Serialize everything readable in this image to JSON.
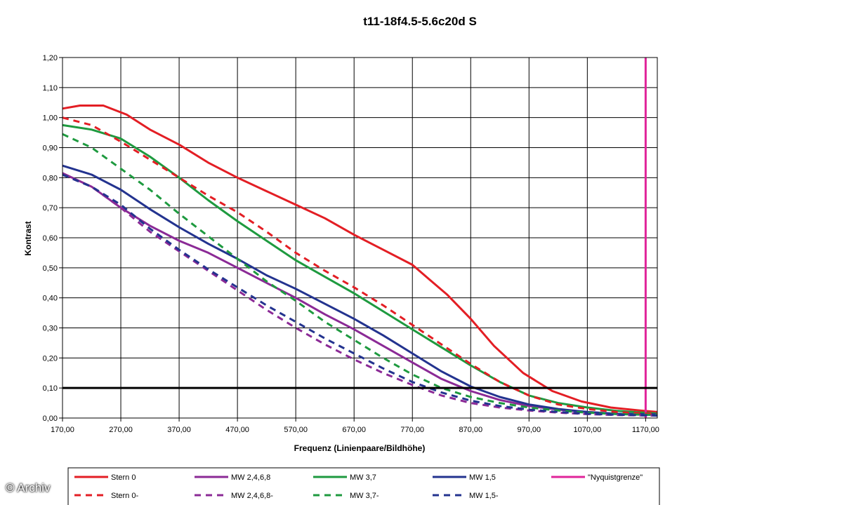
{
  "watermark": "© Archiv",
  "colors": {
    "red": "#e31e24",
    "purple": "#8b2a96",
    "green": "#1e9a3f",
    "blue": "#23338f",
    "pink": "#e0249a",
    "black": "#000000"
  },
  "chart_data": {
    "type": "line",
    "title": "t11-18f4.5-5.6c20d S",
    "xlabel": "Frequenz (Linienpaare/Bildhöhe)",
    "ylabel": "Kontrast",
    "xlim": [
      170,
      1190
    ],
    "ylim": [
      0,
      1.2
    ],
    "x_ticks": [
      "170,00",
      "270,00",
      "370,00",
      "470,00",
      "570,00",
      "670,00",
      "770,00",
      "870,00",
      "970,00",
      "1070,00",
      "1170,00"
    ],
    "y_ticks": [
      "0,00",
      "0,10",
      "0,20",
      "0,30",
      "0,40",
      "0,50",
      "0,60",
      "0,70",
      "0,80",
      "0,90",
      "1,00",
      "1,10",
      "1,20"
    ],
    "grid": true,
    "legend_position": "bottom",
    "reference_line": {
      "y": 0.1
    },
    "series": [
      {
        "name": "Stern 0",
        "color": "red",
        "dash": false,
        "points": [
          [
            170,
            1.03
          ],
          [
            200,
            1.04
          ],
          [
            240,
            1.04
          ],
          [
            280,
            1.01
          ],
          [
            320,
            0.96
          ],
          [
            370,
            0.91
          ],
          [
            420,
            0.85
          ],
          [
            470,
            0.8
          ],
          [
            520,
            0.755
          ],
          [
            570,
            0.71
          ],
          [
            620,
            0.665
          ],
          [
            670,
            0.61
          ],
          [
            720,
            0.56
          ],
          [
            770,
            0.51
          ],
          [
            800,
            0.46
          ],
          [
            830,
            0.41
          ],
          [
            870,
            0.33
          ],
          [
            910,
            0.24
          ],
          [
            960,
            0.15
          ],
          [
            1010,
            0.09
          ],
          [
            1060,
            0.055
          ],
          [
            1110,
            0.035
          ],
          [
            1160,
            0.025
          ],
          [
            1190,
            0.02
          ]
        ]
      },
      {
        "name": "MW 2,4,6,8",
        "color": "purple",
        "dash": false,
        "points": [
          [
            170,
            0.815
          ],
          [
            220,
            0.77
          ],
          [
            270,
            0.7
          ],
          [
            320,
            0.64
          ],
          [
            370,
            0.59
          ],
          [
            420,
            0.55
          ],
          [
            470,
            0.5
          ],
          [
            520,
            0.45
          ],
          [
            570,
            0.4
          ],
          [
            620,
            0.345
          ],
          [
            670,
            0.295
          ],
          [
            720,
            0.24
          ],
          [
            770,
            0.185
          ],
          [
            820,
            0.13
          ],
          [
            870,
            0.09
          ],
          [
            920,
            0.06
          ],
          [
            970,
            0.04
          ],
          [
            1020,
            0.028
          ],
          [
            1070,
            0.02
          ],
          [
            1120,
            0.014
          ],
          [
            1190,
            0.012
          ]
        ]
      },
      {
        "name": "MW 3,7",
        "color": "green",
        "dash": false,
        "points": [
          [
            170,
            0.975
          ],
          [
            220,
            0.96
          ],
          [
            270,
            0.93
          ],
          [
            320,
            0.87
          ],
          [
            370,
            0.8
          ],
          [
            420,
            0.725
          ],
          [
            470,
            0.655
          ],
          [
            520,
            0.59
          ],
          [
            570,
            0.525
          ],
          [
            620,
            0.47
          ],
          [
            670,
            0.415
          ],
          [
            720,
            0.355
          ],
          [
            770,
            0.295
          ],
          [
            820,
            0.235
          ],
          [
            870,
            0.175
          ],
          [
            920,
            0.12
          ],
          [
            970,
            0.075
          ],
          [
            1020,
            0.05
          ],
          [
            1070,
            0.035
          ],
          [
            1120,
            0.024
          ],
          [
            1190,
            0.015
          ]
        ]
      },
      {
        "name": "MW 1,5",
        "color": "blue",
        "dash": false,
        "points": [
          [
            170,
            0.84
          ],
          [
            220,
            0.81
          ],
          [
            270,
            0.76
          ],
          [
            320,
            0.695
          ],
          [
            370,
            0.635
          ],
          [
            420,
            0.58
          ],
          [
            470,
            0.53
          ],
          [
            520,
            0.475
          ],
          [
            570,
            0.43
          ],
          [
            620,
            0.38
          ],
          [
            670,
            0.33
          ],
          [
            720,
            0.275
          ],
          [
            770,
            0.215
          ],
          [
            820,
            0.155
          ],
          [
            870,
            0.105
          ],
          [
            920,
            0.07
          ],
          [
            970,
            0.045
          ],
          [
            1020,
            0.03
          ],
          [
            1070,
            0.02
          ],
          [
            1120,
            0.014
          ],
          [
            1190,
            0.012
          ]
        ]
      },
      {
        "name": "\"Nyquistgrenze\"",
        "color": "pink",
        "dash": false,
        "vertical_x": 1170
      },
      {
        "name": "Stern 0-",
        "color": "red",
        "dash": true,
        "points": [
          [
            170,
            1.0
          ],
          [
            220,
            0.975
          ],
          [
            270,
            0.92
          ],
          [
            320,
            0.86
          ],
          [
            370,
            0.8
          ],
          [
            420,
            0.74
          ],
          [
            470,
            0.685
          ],
          [
            520,
            0.62
          ],
          [
            570,
            0.55
          ],
          [
            620,
            0.49
          ],
          [
            670,
            0.435
          ],
          [
            720,
            0.375
          ],
          [
            770,
            0.31
          ],
          [
            820,
            0.245
          ],
          [
            870,
            0.18
          ],
          [
            920,
            0.12
          ],
          [
            970,
            0.075
          ],
          [
            1020,
            0.045
          ],
          [
            1070,
            0.03
          ],
          [
            1120,
            0.02
          ],
          [
            1190,
            0.013
          ]
        ]
      },
      {
        "name": "MW 2,4,6,8-",
        "color": "purple",
        "dash": true,
        "points": [
          [
            170,
            0.81
          ],
          [
            220,
            0.77
          ],
          [
            270,
            0.7
          ],
          [
            320,
            0.62
          ],
          [
            370,
            0.555
          ],
          [
            420,
            0.49
          ],
          [
            470,
            0.425
          ],
          [
            520,
            0.36
          ],
          [
            570,
            0.3
          ],
          [
            620,
            0.245
          ],
          [
            670,
            0.195
          ],
          [
            720,
            0.15
          ],
          [
            770,
            0.11
          ],
          [
            820,
            0.075
          ],
          [
            870,
            0.05
          ],
          [
            920,
            0.035
          ],
          [
            970,
            0.025
          ],
          [
            1020,
            0.018
          ],
          [
            1070,
            0.013
          ],
          [
            1120,
            0.01
          ],
          [
            1190,
            0.008
          ]
        ]
      },
      {
        "name": "MW 3,7-",
        "color": "green",
        "dash": true,
        "points": [
          [
            170,
            0.945
          ],
          [
            220,
            0.9
          ],
          [
            270,
            0.83
          ],
          [
            320,
            0.76
          ],
          [
            370,
            0.68
          ],
          [
            420,
            0.605
          ],
          [
            470,
            0.53
          ],
          [
            520,
            0.455
          ],
          [
            570,
            0.39
          ],
          [
            620,
            0.32
          ],
          [
            670,
            0.26
          ],
          [
            720,
            0.2
          ],
          [
            770,
            0.145
          ],
          [
            820,
            0.1
          ],
          [
            870,
            0.07
          ],
          [
            920,
            0.05
          ],
          [
            970,
            0.035
          ],
          [
            1020,
            0.025
          ],
          [
            1070,
            0.018
          ],
          [
            1120,
            0.013
          ],
          [
            1190,
            0.01
          ]
        ]
      },
      {
        "name": "MW 1,5-",
        "color": "blue",
        "dash": true,
        "points": [
          [
            170,
            0.81
          ],
          [
            220,
            0.77
          ],
          [
            270,
            0.71
          ],
          [
            320,
            0.63
          ],
          [
            370,
            0.56
          ],
          [
            420,
            0.495
          ],
          [
            470,
            0.435
          ],
          [
            520,
            0.375
          ],
          [
            570,
            0.32
          ],
          [
            620,
            0.265
          ],
          [
            670,
            0.215
          ],
          [
            720,
            0.165
          ],
          [
            770,
            0.12
          ],
          [
            820,
            0.085
          ],
          [
            870,
            0.058
          ],
          [
            920,
            0.04
          ],
          [
            970,
            0.028
          ],
          [
            1020,
            0.02
          ],
          [
            1070,
            0.014
          ],
          [
            1120,
            0.011
          ],
          [
            1190,
            0.008
          ]
        ]
      }
    ]
  }
}
